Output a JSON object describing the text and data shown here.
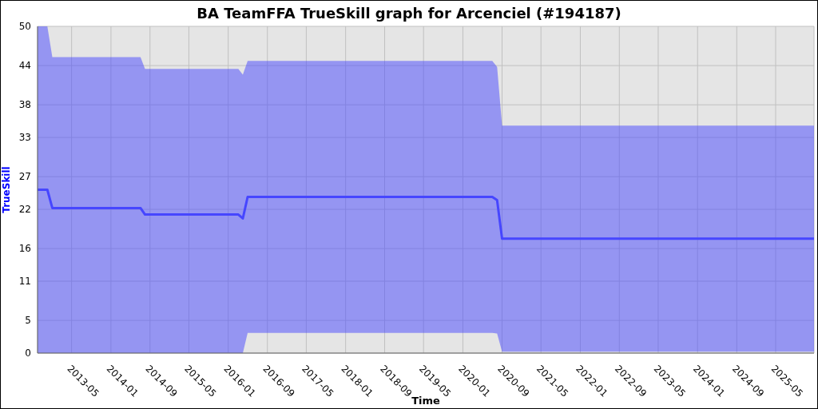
{
  "chart_data": {
    "type": "line",
    "title": "BA TeamFFA TrueSkill graph for Arcenciel (#194187)",
    "xlabel": "Time",
    "ylabel": "TrueSkill",
    "x": [
      "2012-10-01",
      "2012-12-01",
      "2013-01-01",
      "2014-07-04",
      "2014-08-01",
      "2016-03-04",
      "2016-04-01",
      "2016-05-01",
      "2020-07-02",
      "2020-08-01",
      "2020-09-01",
      "2025-12-26"
    ],
    "series": [
      {
        "color": "#4646ff",
        "values": [
          25,
          25,
          22.2,
          22.2,
          21.2,
          21.2,
          20.6,
          23.9,
          23.9,
          23.4,
          17.5,
          17.5
        ],
        "lower": [
          0,
          0,
          0,
          0,
          0,
          0,
          0,
          3.1,
          3.1,
          3.0,
          0.2,
          0.2
        ],
        "upper": [
          50,
          50,
          45.3,
          45.3,
          43.5,
          43.5,
          42.6,
          44.7,
          44.7,
          43.8,
          34.8,
          34.8
        ]
      }
    ],
    "xlim": [
      "2012-10-01",
      "2025-12-26"
    ],
    "xticks": [
      "2013-05",
      "2014-01",
      "2014-09",
      "2015-05",
      "2016-01",
      "2016-09",
      "2017-05",
      "2018-01",
      "2018-09",
      "2019-05",
      "2020-01",
      "2020-09",
      "2021-05",
      "2022-01",
      "2022-09",
      "2023-05",
      "2024-01",
      "2024-09",
      "2025-05"
    ],
    "ylim": [
      0,
      50
    ],
    "yticks": [
      0,
      5,
      11,
      16,
      22,
      27,
      33,
      38,
      44,
      50
    ],
    "grid": true,
    "legend": false,
    "marker": "none",
    "line_style": "solid"
  }
}
